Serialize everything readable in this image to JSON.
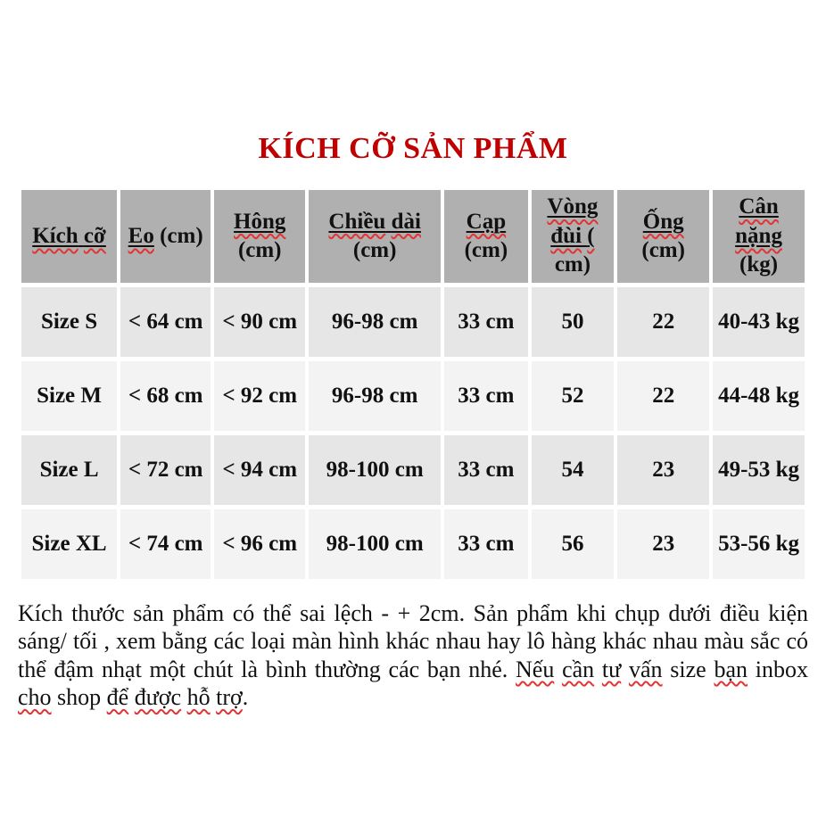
{
  "title": {
    "text": "KÍCH CỠ SẢN PHẨM",
    "color": "#c00000"
  },
  "table": {
    "header_bg": "#b0b0b0",
    "row_bg_odd": "#e6e6e6",
    "row_bg_even": "#f3f3f3",
    "columns": [
      {
        "name": "kich-co",
        "lines": [
          [
            {
              "t": "Kích cỡ",
              "u": true
            }
          ]
        ]
      },
      {
        "name": "eo",
        "lines": [
          [
            {
              "t": "Eo",
              "u": true
            },
            {
              "t": " (cm)",
              "u": false
            }
          ]
        ]
      },
      {
        "name": "hong",
        "lines": [
          [
            {
              "t": "Hông",
              "u": true
            }
          ],
          [
            {
              "t": "(cm)",
              "u": false
            }
          ]
        ]
      },
      {
        "name": "chieu-dai",
        "lines": [
          [
            {
              "t": "Chiều dài",
              "u": true
            }
          ],
          [
            {
              "t": "(cm)",
              "u": false
            }
          ]
        ]
      },
      {
        "name": "cap",
        "lines": [
          [
            {
              "t": "Cạp",
              "u": true
            }
          ],
          [
            {
              "t": "(cm)",
              "u": false
            }
          ]
        ]
      },
      {
        "name": "vong-dui",
        "lines": [
          [
            {
              "t": "Vòng",
              "u": true
            }
          ],
          [
            {
              "t": "đùi (",
              "u": true
            }
          ],
          [
            {
              "t": "cm)",
              "u": false
            }
          ]
        ]
      },
      {
        "name": "ong",
        "lines": [
          [
            {
              "t": "Ống",
              "u": true
            }
          ],
          [
            {
              "t": "(cm)",
              "u": false
            }
          ]
        ]
      },
      {
        "name": "can-nang",
        "lines": [
          [
            {
              "t": "Cân",
              "u": true
            }
          ],
          [
            {
              "t": "nặng",
              "u": true
            }
          ],
          [
            {
              "t": "(kg)",
              "u": false
            }
          ]
        ]
      }
    ],
    "rows": [
      [
        "Size S",
        "< 64 cm",
        "< 90 cm",
        "96-98 cm",
        "33 cm",
        "50",
        "22",
        "40-43 kg"
      ],
      [
        "Size M",
        "< 68 cm",
        "< 92 cm",
        "96-98 cm",
        "33 cm",
        "52",
        "22",
        "44-48 kg"
      ],
      [
        "Size L",
        "< 72 cm",
        "< 94 cm",
        "98-100 cm",
        "33 cm",
        "54",
        "23",
        "49-53 kg"
      ],
      [
        "Size XL",
        "< 74 cm",
        "< 96 cm",
        "98-100 cm",
        "33 cm",
        "56",
        "23",
        "53-56 kg"
      ]
    ]
  },
  "footer": {
    "segments": [
      {
        "t": "Kích thước sản phẩm có thể sai lệch - + 2cm. Sản phẩm khi chụp dưới điều kiện sáng/ tối , xem bằng các loại màn hình khác nhau hay lô hàng khác nhau màu sắc có thể đậm nhạt một chút là bình thường các bạn nhé. ",
        "w": false
      },
      {
        "t": "Nếu cần tư vấn",
        "w": true
      },
      {
        "t": " size ",
        "w": false
      },
      {
        "t": "bạn",
        "w": true
      },
      {
        "t": " inbox ",
        "w": false
      },
      {
        "t": "cho",
        "w": true
      },
      {
        "t": " shop ",
        "w": false
      },
      {
        "t": "để được hỗ trợ",
        "w": true
      },
      {
        "t": ".",
        "w": false
      }
    ]
  },
  "colors": {
    "title_red": "#c00000",
    "spellcheck_red": "#e33333"
  }
}
